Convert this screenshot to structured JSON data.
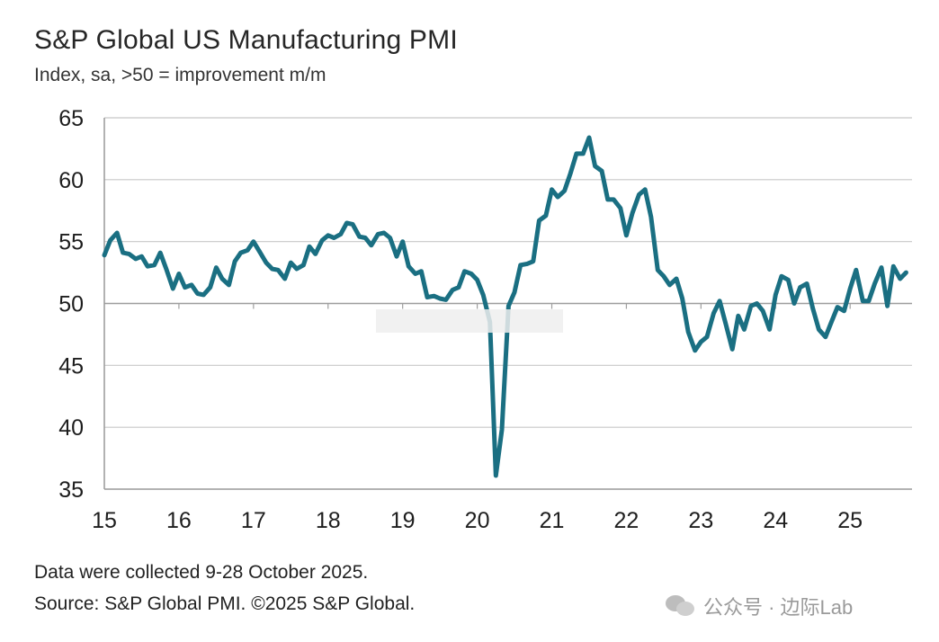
{
  "title": "S&P Global US Manufacturing PMI",
  "subtitle": "Index, sa, >50 = improvement m/m",
  "footnote": "Data were collected 9-28 October 2025.",
  "source": "Source: S&P Global PMI. ©2025 S&P Global.",
  "watermark": {
    "icon": "wechat-icon",
    "text": "公众号 · 边际Lab"
  },
  "colors": {
    "line": "#1a6f82",
    "grid": "#c8c8c8",
    "axis": "#999999"
  },
  "chart_data": {
    "type": "line",
    "title": "S&P Global US Manufacturing PMI",
    "xlabel": "",
    "ylabel": "Index, sa, >50 = improvement m/m",
    "ylim": [
      35,
      65
    ],
    "xlim": [
      15,
      25.83
    ],
    "y_ticks": [
      35,
      40,
      45,
      50,
      55,
      60,
      65
    ],
    "x_ticks": [
      15,
      16,
      17,
      18,
      19,
      20,
      21,
      22,
      23,
      24,
      25
    ],
    "x_tick_labels": [
      "15",
      "16",
      "17",
      "18",
      "19",
      "20",
      "21",
      "22",
      "23",
      "24",
      "25"
    ],
    "reference_line": 50,
    "grid": true,
    "series": [
      {
        "name": "US Manufacturing PMI",
        "x": [
          15.0,
          15.08,
          15.17,
          15.25,
          15.33,
          15.42,
          15.5,
          15.58,
          15.67,
          15.75,
          15.83,
          15.92,
          16.0,
          16.08,
          16.17,
          16.25,
          16.33,
          16.42,
          16.5,
          16.58,
          16.67,
          16.75,
          16.83,
          16.92,
          17.0,
          17.08,
          17.17,
          17.25,
          17.33,
          17.42,
          17.5,
          17.58,
          17.67,
          17.75,
          17.83,
          17.92,
          18.0,
          18.08,
          18.17,
          18.25,
          18.33,
          18.42,
          18.5,
          18.58,
          18.67,
          18.75,
          18.83,
          18.92,
          19.0,
          19.08,
          19.17,
          19.25,
          19.33,
          19.42,
          19.5,
          19.58,
          19.67,
          19.75,
          19.83,
          19.92,
          20.0,
          20.08,
          20.17,
          20.25,
          20.33,
          20.42,
          20.5,
          20.58,
          20.67,
          20.75,
          20.83,
          20.92,
          21.0,
          21.08,
          21.17,
          21.25,
          21.33,
          21.42,
          21.5,
          21.58,
          21.67,
          21.75,
          21.83,
          21.92,
          22.0,
          22.08,
          22.17,
          22.25,
          22.33,
          22.42,
          22.5,
          22.58,
          22.67,
          22.75,
          22.83,
          22.92,
          23.0,
          23.08,
          23.17,
          23.25,
          23.33,
          23.42,
          23.5,
          23.58,
          23.67,
          23.75,
          23.83,
          23.92,
          24.0,
          24.08,
          24.17,
          24.25,
          24.33,
          24.42,
          24.5,
          24.58,
          24.67,
          24.75,
          24.83,
          24.92,
          25.0,
          25.08,
          25.17,
          25.25,
          25.33,
          25.42,
          25.5,
          25.58,
          25.67,
          25.75
        ],
        "values": [
          53.9,
          55.1,
          55.7,
          54.1,
          54.0,
          53.6,
          53.8,
          53.0,
          53.1,
          54.1,
          52.8,
          51.2,
          52.4,
          51.3,
          51.5,
          50.8,
          50.7,
          51.3,
          52.9,
          52.0,
          51.5,
          53.4,
          54.1,
          54.3,
          55.0,
          54.2,
          53.3,
          52.8,
          52.7,
          52.0,
          53.3,
          52.8,
          53.1,
          54.6,
          54.0,
          55.1,
          55.5,
          55.3,
          55.6,
          56.5,
          56.4,
          55.4,
          55.3,
          54.7,
          55.6,
          55.7,
          55.3,
          53.8,
          55.0,
          53.0,
          52.4,
          52.6,
          50.5,
          50.6,
          50.4,
          50.3,
          51.1,
          51.3,
          52.6,
          52.4,
          51.9,
          50.7,
          48.5,
          36.1,
          39.8,
          49.8,
          50.9,
          53.1,
          53.2,
          53.4,
          56.7,
          57.1,
          59.2,
          58.6,
          59.1,
          60.5,
          62.1,
          62.1,
          63.4,
          61.1,
          60.7,
          58.4,
          58.4,
          57.7,
          55.5,
          57.3,
          58.8,
          59.2,
          57.0,
          52.7,
          52.2,
          51.5,
          52.0,
          50.4,
          47.7,
          46.2,
          46.9,
          47.3,
          49.2,
          50.2,
          48.4,
          46.3,
          49.0,
          47.9,
          49.8,
          50.0,
          49.4,
          47.9,
          50.7,
          52.2,
          51.9,
          50.0,
          51.3,
          51.6,
          49.6,
          47.9,
          47.3,
          48.5,
          49.7,
          49.4,
          51.2,
          52.7,
          50.2,
          50.2,
          51.6,
          52.9,
          49.8,
          53.0,
          52.0,
          52.5
        ]
      }
    ]
  }
}
